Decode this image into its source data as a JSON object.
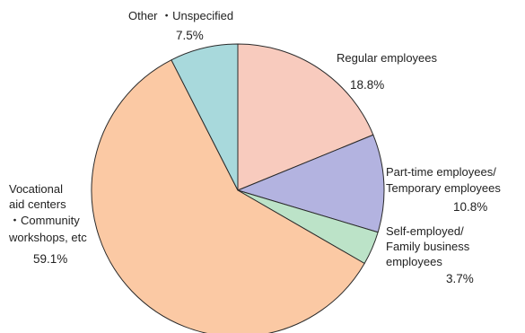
{
  "chart_data": {
    "type": "pie",
    "title": "",
    "start_angle_deg": 0,
    "direction": "clockwise",
    "slices": [
      {
        "label_lines": [
          "Regular employees"
        ],
        "value": 18.8,
        "percent_label": "18.8%",
        "color": "#f8cbbe"
      },
      {
        "label_lines": [
          "Part-time employees/",
          "Temporary employees"
        ],
        "value": 10.8,
        "percent_label": "10.8%",
        "color": "#b3b3e0"
      },
      {
        "label_lines": [
          "Self-employed/",
          "Family business",
          "employees"
        ],
        "value": 3.7,
        "percent_label": "3.7%",
        "color": "#bce3c8"
      },
      {
        "label_lines": [
          "Vocational",
          "aid centers",
          "・Community",
          "workshops, etc"
        ],
        "value": 59.1,
        "percent_label": "59.1%",
        "color": "#fbc9a4"
      },
      {
        "label_lines": [
          "Other ・Unspecified"
        ],
        "value": 7.5,
        "percent_label": "7.5%",
        "color": "#a8d9dc"
      }
    ]
  }
}
